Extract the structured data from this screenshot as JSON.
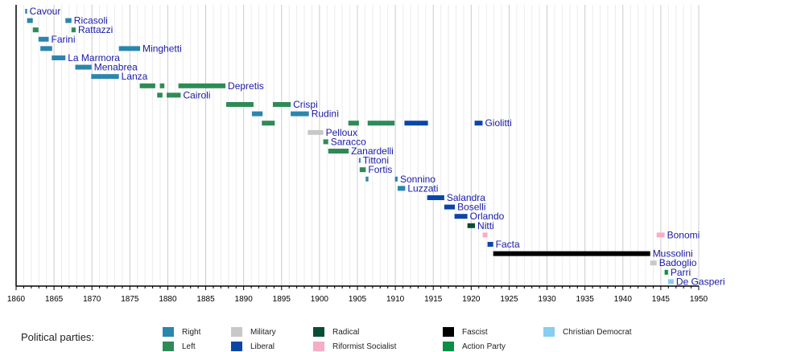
{
  "chart_data": {
    "type": "timeline",
    "title": "",
    "xlabel": "",
    "ylabel": "",
    "xlim": [
      1860,
      1950
    ],
    "x_ticks": [
      1860,
      1865,
      1870,
      1875,
      1880,
      1885,
      1890,
      1895,
      1900,
      1905,
      1910,
      1915,
      1920,
      1925,
      1930,
      1935,
      1940,
      1945,
      1950
    ],
    "grid": "vertical, yearly",
    "parties": {
      "Right": "#2b86ad",
      "Left": "#2e8b57",
      "Military": "#c8c8c8",
      "Liberal": "#0b46a6",
      "Radical": "#064e33",
      "Riformist Socialist": "#f6adc6",
      "Fascist": "#000000",
      "Action Party": "#0a8f47",
      "Christian Democrat": "#87cef0"
    },
    "rows": [
      {
        "name": "Cavour",
        "terms": [
          {
            "start": 1861.2,
            "end": 1861.45,
            "party": "Right"
          }
        ],
        "label_after": 1861.45
      },
      {
        "name": "Ricasoli",
        "terms": [
          {
            "start": 1861.45,
            "end": 1862.2,
            "party": "Right"
          },
          {
            "start": 1866.5,
            "end": 1867.3,
            "party": "Right"
          }
        ],
        "label_after": 1867.3
      },
      {
        "name": "Rattazzi",
        "terms": [
          {
            "start": 1862.2,
            "end": 1862.95,
            "party": "Left"
          },
          {
            "start": 1867.3,
            "end": 1867.85,
            "party": "Left"
          }
        ],
        "label_after": 1867.85
      },
      {
        "name": "Farini",
        "terms": [
          {
            "start": 1862.95,
            "end": 1864.3,
            "party": "Right"
          }
        ],
        "label_after": 1864.3
      },
      {
        "name": "Minghetti",
        "terms": [
          {
            "start": 1863.2,
            "end": 1864.75,
            "party": "Right"
          },
          {
            "start": 1873.55,
            "end": 1876.35,
            "party": "Right"
          }
        ],
        "label_after": 1876.35
      },
      {
        "name": "La Marmora",
        "terms": [
          {
            "start": 1864.7,
            "end": 1866.5,
            "party": "Right"
          }
        ],
        "label_after": 1866.5
      },
      {
        "name": "Menabrea",
        "terms": [
          {
            "start": 1867.8,
            "end": 1869.95,
            "party": "Right"
          }
        ],
        "label_after": 1869.95
      },
      {
        "name": "Lanza",
        "terms": [
          {
            "start": 1869.9,
            "end": 1873.55,
            "party": "Right"
          }
        ],
        "label_after": 1873.55
      },
      {
        "name": "Depretis",
        "terms": [
          {
            "start": 1876.3,
            "end": 1878.35,
            "party": "Left"
          },
          {
            "start": 1878.95,
            "end": 1879.55,
            "party": "Left"
          },
          {
            "start": 1881.4,
            "end": 1887.6,
            "party": "Left"
          }
        ],
        "label_after": 1887.6
      },
      {
        "name": "Cairoli",
        "terms": [
          {
            "start": 1878.6,
            "end": 1879.3,
            "party": "Left"
          },
          {
            "start": 1879.85,
            "end": 1881.7,
            "party": "Left"
          }
        ],
        "label_after": 1881.7
      },
      {
        "name": "Crispi",
        "terms": [
          {
            "start": 1887.7,
            "end": 1891.3,
            "party": "Left"
          },
          {
            "start": 1893.85,
            "end": 1896.2,
            "party": "Left"
          }
        ],
        "label_after": 1896.2
      },
      {
        "name": "Rudinì",
        "terms": [
          {
            "start": 1891.1,
            "end": 1892.5,
            "party": "Right"
          },
          {
            "start": 1896.2,
            "end": 1898.6,
            "party": "Right"
          }
        ],
        "label_after": 1898.6
      },
      {
        "name": "Giolitti",
        "terms": [
          {
            "start": 1892.4,
            "end": 1894.1,
            "party": "Left"
          },
          {
            "start": 1903.8,
            "end": 1905.2,
            "party": "Left"
          },
          {
            "start": 1906.35,
            "end": 1909.9,
            "party": "Left"
          },
          {
            "start": 1911.2,
            "end": 1914.3,
            "party": "Liberal"
          },
          {
            "start": 1920.45,
            "end": 1921.5,
            "party": "Liberal"
          }
        ],
        "label_after": 1921.5
      },
      {
        "name": "Pelloux",
        "terms": [
          {
            "start": 1898.45,
            "end": 1900.5,
            "party": "Military"
          }
        ],
        "label_after": 1900.5
      },
      {
        "name": "Saracco",
        "terms": [
          {
            "start": 1900.5,
            "end": 1901.15,
            "party": "Left"
          }
        ],
        "label_after": 1901.15
      },
      {
        "name": "Zanardelli",
        "terms": [
          {
            "start": 1901.15,
            "end": 1903.85,
            "party": "Left"
          }
        ],
        "label_after": 1903.85
      },
      {
        "name": "Tittoni",
        "terms": [
          {
            "start": 1905.2,
            "end": 1905.4,
            "party": "Right"
          }
        ],
        "label_after": 1905.4
      },
      {
        "name": "Fortis",
        "terms": [
          {
            "start": 1905.3,
            "end": 1906.1,
            "party": "Left"
          }
        ],
        "label_after": 1906.1
      },
      {
        "name": "Sonnino",
        "terms": [
          {
            "start": 1906.1,
            "end": 1906.45,
            "party": "Right"
          },
          {
            "start": 1909.95,
            "end": 1910.3,
            "party": "Right"
          }
        ],
        "label_after": 1910.3
      },
      {
        "name": "Luzzati",
        "terms": [
          {
            "start": 1910.3,
            "end": 1911.3,
            "party": "Right"
          }
        ],
        "label_after": 1911.3
      },
      {
        "name": "Salandra",
        "terms": [
          {
            "start": 1914.2,
            "end": 1916.45,
            "party": "Liberal"
          }
        ],
        "label_after": 1916.45
      },
      {
        "name": "Boselli",
        "terms": [
          {
            "start": 1916.45,
            "end": 1917.85,
            "party": "Liberal"
          }
        ],
        "label_after": 1917.85
      },
      {
        "name": "Orlando",
        "terms": [
          {
            "start": 1917.8,
            "end": 1919.5,
            "party": "Liberal"
          }
        ],
        "label_after": 1919.5
      },
      {
        "name": "Nitti",
        "terms": [
          {
            "start": 1919.5,
            "end": 1920.5,
            "party": "Radical"
          }
        ],
        "label_after": 1920.5
      },
      {
        "name": "Bonomi",
        "terms": [
          {
            "start": 1921.5,
            "end": 1922.15,
            "party": "Riformist Socialist"
          },
          {
            "start": 1944.45,
            "end": 1945.5,
            "party": "Riformist Socialist"
          }
        ],
        "label_after": 1945.5
      },
      {
        "name": "Facta",
        "terms": [
          {
            "start": 1922.15,
            "end": 1922.9,
            "party": "Liberal"
          }
        ],
        "label_after": 1922.9
      },
      {
        "name": "Mussolini",
        "terms": [
          {
            "start": 1922.9,
            "end": 1943.6,
            "party": "Fascist"
          }
        ],
        "label_after": 1943.6
      },
      {
        "name": "Badoglio",
        "terms": [
          {
            "start": 1943.6,
            "end": 1944.45,
            "party": "Military"
          }
        ],
        "label_after": 1944.45
      },
      {
        "name": "Parri",
        "terms": [
          {
            "start": 1945.5,
            "end": 1945.95,
            "party": "Action Party"
          }
        ],
        "label_after": 1945.95
      },
      {
        "name": "De Gasperi",
        "terms": [
          {
            "start": 1945.95,
            "end": 1946.7,
            "party": "Christian Democrat"
          }
        ],
        "label_after": 1946.7
      }
    ],
    "legend": {
      "title": "Political parties:",
      "placement": "bottom",
      "entries": [
        "Right",
        "Left",
        "Military",
        "Liberal",
        "Radical",
        "Riformist Socialist",
        "Fascist",
        "Action Party",
        "Christian Democrat"
      ]
    }
  }
}
